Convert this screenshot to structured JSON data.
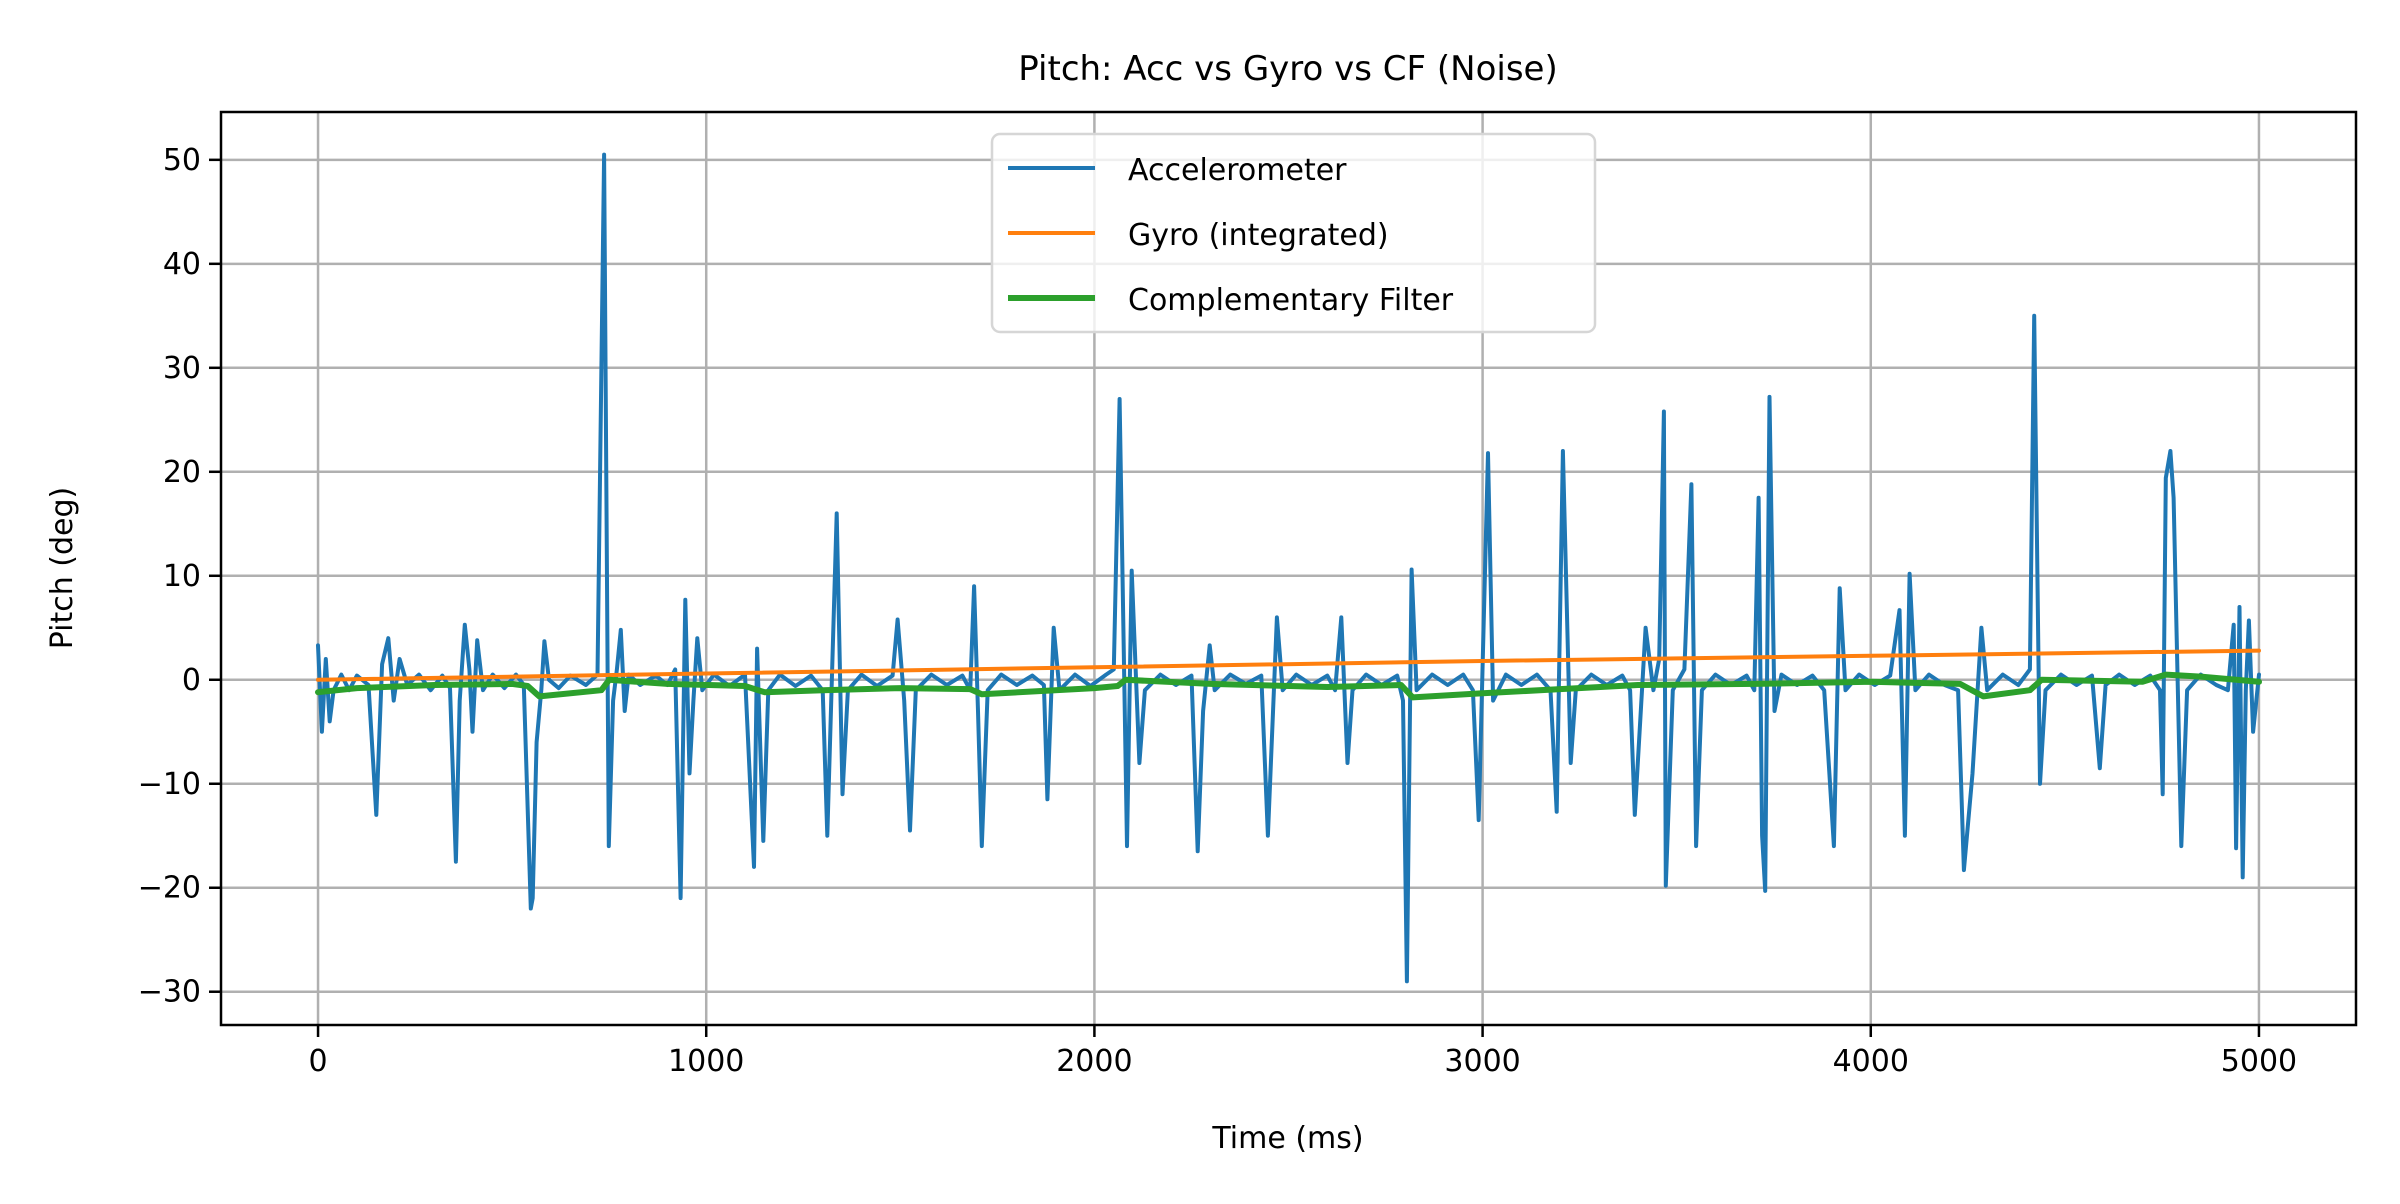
{
  "chart_data": {
    "type": "line",
    "title": "Pitch: Acc vs Gyro vs CF (Noise)",
    "xlabel": "Time (ms)",
    "ylabel": "Pitch (deg)",
    "xlim": [
      -250,
      5250
    ],
    "ylim": [
      -33.2,
      54.6
    ],
    "xticks": [
      0,
      1000,
      2000,
      3000,
      4000,
      5000
    ],
    "xtick_labels": [
      "0",
      "1000",
      "2000",
      "3000",
      "4000",
      "5000"
    ],
    "yticks": [
      -30,
      -20,
      -10,
      0,
      10,
      20,
      30,
      40,
      50
    ],
    "ytick_labels": [
      "−30",
      "−20",
      "−10",
      "0",
      "10",
      "20",
      "30",
      "40",
      "50"
    ],
    "grid": true,
    "legend_position": "upper-center",
    "series": [
      {
        "name": "Accelerometer",
        "color": "#1f77b4",
        "points": [
          [
            0,
            3.3
          ],
          [
            10,
            -5
          ],
          [
            20,
            2
          ],
          [
            30,
            -4
          ],
          [
            40,
            -1
          ],
          [
            60,
            0.5
          ],
          [
            80,
            -1
          ],
          [
            100,
            0.4
          ],
          [
            130,
            -0.5
          ],
          [
            150,
            -13
          ],
          [
            165,
            1.5
          ],
          [
            181,
            4
          ],
          [
            195,
            -2
          ],
          [
            210,
            2
          ],
          [
            230,
            -0.5
          ],
          [
            260,
            0.5
          ],
          [
            290,
            -1
          ],
          [
            320,
            0.4
          ],
          [
            340,
            -0.8
          ],
          [
            355,
            -17.5
          ],
          [
            365,
            -2
          ],
          [
            378,
            5.3
          ],
          [
            390,
            1
          ],
          [
            398,
            -5
          ],
          [
            410,
            3.8
          ],
          [
            425,
            -1
          ],
          [
            450,
            0.5
          ],
          [
            480,
            -0.8
          ],
          [
            510,
            0.5
          ],
          [
            530,
            -0.5
          ],
          [
            548,
            -22
          ],
          [
            553,
            -21
          ],
          [
            563,
            -6
          ],
          [
            575,
            -1
          ],
          [
            583,
            3.7
          ],
          [
            595,
            0
          ],
          [
            620,
            -0.8
          ],
          [
            650,
            0.4
          ],
          [
            690,
            -0.5
          ],
          [
            720,
            0.5
          ],
          [
            737,
            50.5
          ],
          [
            749,
            -16
          ],
          [
            760,
            -2
          ],
          [
            770,
            1
          ],
          [
            780,
            4.8
          ],
          [
            790,
            -3
          ],
          [
            800,
            0.5
          ],
          [
            830,
            -0.5
          ],
          [
            870,
            0.4
          ],
          [
            900,
            -0.5
          ],
          [
            920,
            1
          ],
          [
            934,
            -21
          ],
          [
            946,
            7.7
          ],
          [
            957,
            -9
          ],
          [
            967,
            -2
          ],
          [
            977,
            4
          ],
          [
            990,
            -1
          ],
          [
            1020,
            0.5
          ],
          [
            1060,
            -0.6
          ],
          [
            1100,
            0.5
          ],
          [
            1123,
            -18
          ],
          [
            1131,
            3
          ],
          [
            1147,
            -15.5
          ],
          [
            1160,
            -1
          ],
          [
            1190,
            0.5
          ],
          [
            1230,
            -0.6
          ],
          [
            1270,
            0.4
          ],
          [
            1300,
            -1
          ],
          [
            1312,
            -15
          ],
          [
            1336,
            16
          ],
          [
            1351,
            -11
          ],
          [
            1365,
            -1
          ],
          [
            1400,
            0.5
          ],
          [
            1440,
            -0.6
          ],
          [
            1480,
            0.4
          ],
          [
            1493,
            5.8
          ],
          [
            1510,
            -2
          ],
          [
            1525,
            -14.5
          ],
          [
            1540,
            -1
          ],
          [
            1580,
            0.5
          ],
          [
            1620,
            -0.5
          ],
          [
            1660,
            0.4
          ],
          [
            1680,
            -1
          ],
          [
            1690,
            9
          ],
          [
            1700,
            -3
          ],
          [
            1710,
            -16
          ],
          [
            1725,
            -1
          ],
          [
            1760,
            0.5
          ],
          [
            1800,
            -0.5
          ],
          [
            1840,
            0.4
          ],
          [
            1870,
            -0.5
          ],
          [
            1879,
            -11.5
          ],
          [
            1895,
            5
          ],
          [
            1910,
            -1
          ],
          [
            1950,
            0.5
          ],
          [
            1990,
            -0.6
          ],
          [
            2030,
            0.5
          ],
          [
            2050,
            1
          ],
          [
            2065,
            27
          ],
          [
            2084,
            -16
          ],
          [
            2096,
            10.5
          ],
          [
            2116,
            -8
          ],
          [
            2130,
            -1
          ],
          [
            2170,
            0.5
          ],
          [
            2210,
            -0.5
          ],
          [
            2250,
            0.4
          ],
          [
            2266,
            -16.5
          ],
          [
            2280,
            -3
          ],
          [
            2297,
            3.3
          ],
          [
            2310,
            -1
          ],
          [
            2350,
            0.5
          ],
          [
            2390,
            -0.4
          ],
          [
            2430,
            0.4
          ],
          [
            2447,
            -15
          ],
          [
            2470,
            6
          ],
          [
            2485,
            -1
          ],
          [
            2520,
            0.5
          ],
          [
            2560,
            -0.5
          ],
          [
            2600,
            0.4
          ],
          [
            2620,
            -1
          ],
          [
            2636,
            6
          ],
          [
            2652,
            -8
          ],
          [
            2665,
            -1
          ],
          [
            2700,
            0.5
          ],
          [
            2740,
            -0.5
          ],
          [
            2780,
            0.4
          ],
          [
            2795,
            -2
          ],
          [
            2805,
            -29
          ],
          [
            2817,
            10.6
          ],
          [
            2830,
            -1
          ],
          [
            2870,
            0.5
          ],
          [
            2910,
            -0.5
          ],
          [
            2950,
            0.5
          ],
          [
            2975,
            -1
          ],
          [
            2990,
            -13.5
          ],
          [
            3014,
            21.8
          ],
          [
            3027,
            -2
          ],
          [
            3060,
            0.5
          ],
          [
            3100,
            -0.5
          ],
          [
            3140,
            0.5
          ],
          [
            3175,
            -1
          ],
          [
            3191,
            -12.7
          ],
          [
            3207,
            22
          ],
          [
            3227,
            -8
          ],
          [
            3240,
            -1
          ],
          [
            3280,
            0.5
          ],
          [
            3320,
            -0.5
          ],
          [
            3360,
            0.4
          ],
          [
            3380,
            -1
          ],
          [
            3392,
            -13
          ],
          [
            3420,
            5
          ],
          [
            3440,
            -1
          ],
          [
            3455,
            2
          ],
          [
            3467,
            25.8
          ],
          [
            3472,
            -19.8
          ],
          [
            3490,
            -1
          ],
          [
            3520,
            1
          ],
          [
            3538,
            18.8
          ],
          [
            3550,
            -16
          ],
          [
            3565,
            -1
          ],
          [
            3600,
            0.5
          ],
          [
            3640,
            -0.5
          ],
          [
            3680,
            0.4
          ],
          [
            3700,
            -1
          ],
          [
            3711,
            17.5
          ],
          [
            3720,
            -15
          ],
          [
            3728,
            -20.3
          ],
          [
            3739,
            27.2
          ],
          [
            3752,
            -3
          ],
          [
            3770,
            0.5
          ],
          [
            3810,
            -0.5
          ],
          [
            3850,
            0.4
          ],
          [
            3880,
            -1
          ],
          [
            3905,
            -16
          ],
          [
            3920,
            8.8
          ],
          [
            3935,
            -1
          ],
          [
            3970,
            0.5
          ],
          [
            4010,
            -0.5
          ],
          [
            4050,
            0.4
          ],
          [
            4074,
            6.7
          ],
          [
            4088,
            -15
          ],
          [
            4100,
            10.2
          ],
          [
            4115,
            -1
          ],
          [
            4150,
            0.5
          ],
          [
            4190,
            -0.5
          ],
          [
            4225,
            -1
          ],
          [
            4240,
            -18.3
          ],
          [
            4262,
            -9
          ],
          [
            4285,
            5
          ],
          [
            4300,
            -1
          ],
          [
            4340,
            0.5
          ],
          [
            4380,
            -0.5
          ],
          [
            4410,
            1
          ],
          [
            4421,
            35
          ],
          [
            4436,
            -10
          ],
          [
            4450,
            -1
          ],
          [
            4490,
            0.5
          ],
          [
            4530,
            -0.5
          ],
          [
            4570,
            0.4
          ],
          [
            4590,
            -8.5
          ],
          [
            4605,
            -0.5
          ],
          [
            4640,
            0.5
          ],
          [
            4680,
            -0.5
          ],
          [
            4720,
            0.4
          ],
          [
            4745,
            -1
          ],
          [
            4752,
            -11
          ],
          [
            4760,
            19.4
          ],
          [
            4772,
            22
          ],
          [
            4780,
            17.5
          ],
          [
            4800,
            -16
          ],
          [
            4815,
            -1
          ],
          [
            4850,
            0.5
          ],
          [
            4890,
            -0.5
          ],
          [
            4920,
            -1
          ],
          [
            4935,
            5.3
          ],
          [
            4941,
            -16.2
          ],
          [
            4950,
            7
          ],
          [
            4958,
            -19
          ],
          [
            4966,
            -1
          ],
          [
            4974,
            5.7
          ],
          [
            4985,
            -5
          ],
          [
            5000,
            0.5
          ]
        ]
      },
      {
        "name": "Gyro (integrated)",
        "color": "#ff7f0e",
        "points": [
          [
            0,
            0
          ],
          [
            1000,
            0.6
          ],
          [
            2000,
            1.2
          ],
          [
            3000,
            1.8
          ],
          [
            4000,
            2.3
          ],
          [
            5000,
            2.8
          ]
        ]
      },
      {
        "name": "Complementary Filter",
        "color": "#2ca02c",
        "points": [
          [
            0,
            -1.2
          ],
          [
            100,
            -0.8
          ],
          [
            300,
            -0.5
          ],
          [
            500,
            -0.4
          ],
          [
            540,
            -0.6
          ],
          [
            570,
            -1.6
          ],
          [
            730,
            -1.0
          ],
          [
            750,
            0
          ],
          [
            900,
            -0.4
          ],
          [
            1100,
            -0.6
          ],
          [
            1150,
            -1.2
          ],
          [
            1300,
            -1.0
          ],
          [
            1500,
            -0.8
          ],
          [
            1680,
            -0.9
          ],
          [
            1710,
            -1.4
          ],
          [
            2000,
            -0.8
          ],
          [
            2060,
            -0.6
          ],
          [
            2080,
            0
          ],
          [
            2300,
            -0.4
          ],
          [
            2600,
            -0.7
          ],
          [
            2790,
            -0.5
          ],
          [
            2820,
            -1.7
          ],
          [
            3000,
            -1.3
          ],
          [
            3200,
            -0.9
          ],
          [
            3400,
            -0.5
          ],
          [
            3700,
            -0.4
          ],
          [
            4000,
            -0.2
          ],
          [
            4230,
            -0.4
          ],
          [
            4290,
            -1.6
          ],
          [
            4410,
            -1.0
          ],
          [
            4440,
            0
          ],
          [
            4700,
            -0.2
          ],
          [
            4760,
            0.5
          ],
          [
            4850,
            0.3
          ],
          [
            5000,
            -0.2
          ]
        ]
      }
    ]
  }
}
